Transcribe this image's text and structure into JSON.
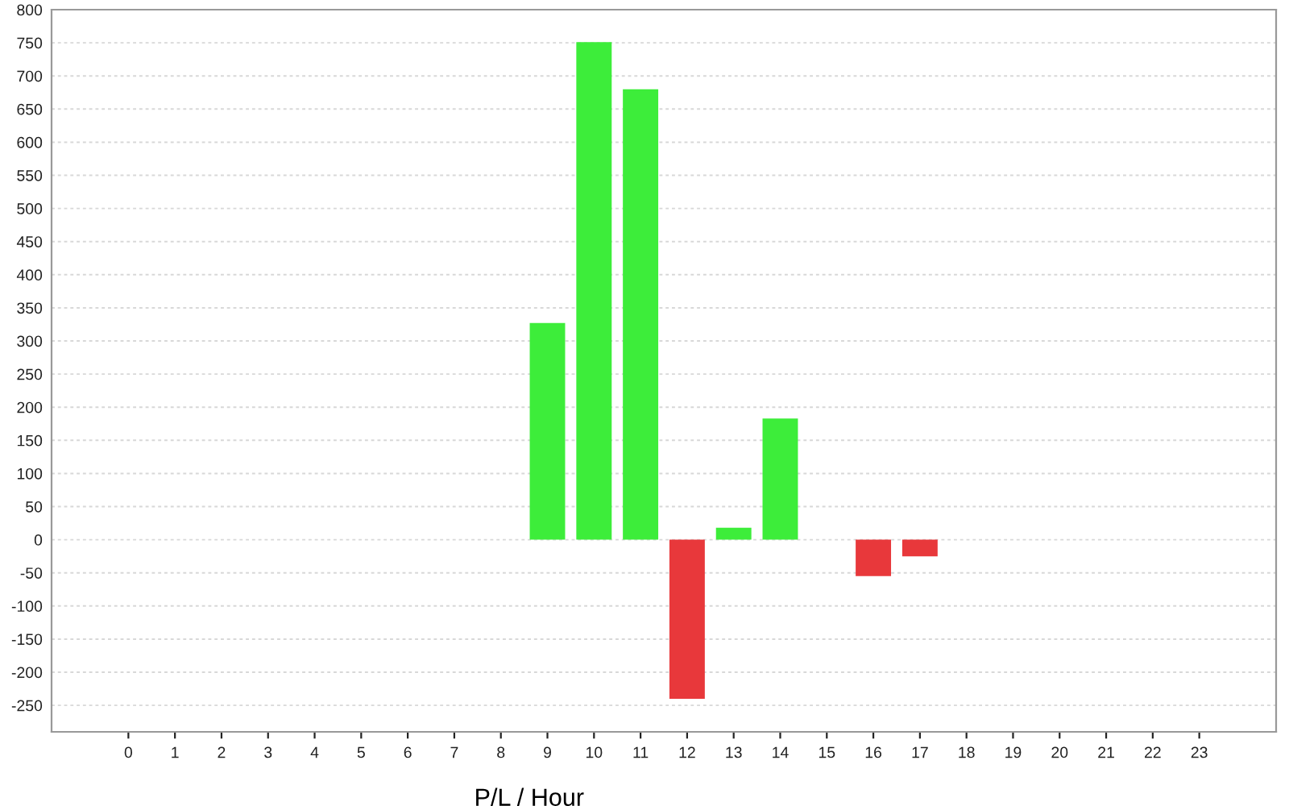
{
  "chart_data": {
    "type": "bar",
    "xlabel": "P/L / Hour",
    "categories": [
      "0",
      "1",
      "2",
      "3",
      "4",
      "5",
      "6",
      "7",
      "8",
      "9",
      "10",
      "11",
      "12",
      "13",
      "14",
      "15",
      "16",
      "17",
      "18",
      "19",
      "20",
      "21",
      "22",
      "23"
    ],
    "values": [
      null,
      null,
      null,
      null,
      null,
      null,
      null,
      null,
      null,
      327,
      751,
      680,
      -240,
      18,
      183,
      null,
      -55,
      -25,
      null,
      null,
      null,
      null,
      null,
      null
    ],
    "colors": [
      "#3ded3a",
      "#3ded3a",
      "#3ded3a",
      "#3ded3a",
      "#3ded3a",
      "#3ded3a",
      "#3ded3a",
      "#3ded3a",
      "#3ded3a",
      "#3ded3a",
      "#3ded3a",
      "#3ded3a",
      "#e8383b",
      "#3ded3a",
      "#3ded3a",
      "#3ded3a",
      "#e8383b",
      "#e8383b",
      "#3ded3a",
      "#3ded3a",
      "#3ded3a",
      "#3ded3a",
      "#3ded3a",
      "#3ded3a"
    ],
    "ylim": [
      -290,
      800
    ],
    "yticks": [
      -250,
      -200,
      -150,
      -100,
      -50,
      0,
      50,
      100,
      150,
      200,
      250,
      300,
      350,
      400,
      450,
      500,
      550,
      600,
      650,
      700,
      750,
      800
    ],
    "grid": "y"
  }
}
